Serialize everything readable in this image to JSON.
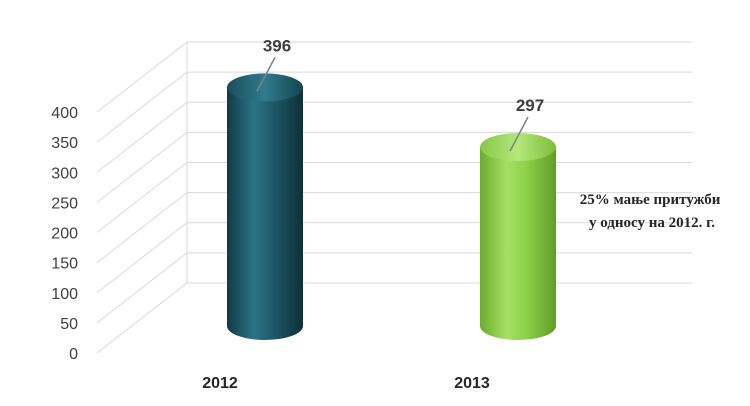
{
  "chart_data": {
    "type": "bar",
    "style": "3d-cylinder",
    "categories": [
      "2012",
      "2013"
    ],
    "values": [
      396,
      297
    ],
    "data_labels": [
      "396",
      "297"
    ],
    "colors": [
      "#1e5a6a",
      "#8ed24a"
    ],
    "ylim": [
      0,
      400
    ],
    "yticks": [
      "0",
      "50",
      "100",
      "150",
      "200",
      "250",
      "300",
      "350",
      "400"
    ],
    "grid": true,
    "legend": "none",
    "annotation": [
      "25% мање притужби",
      "у односу на 2012. г."
    ]
  }
}
